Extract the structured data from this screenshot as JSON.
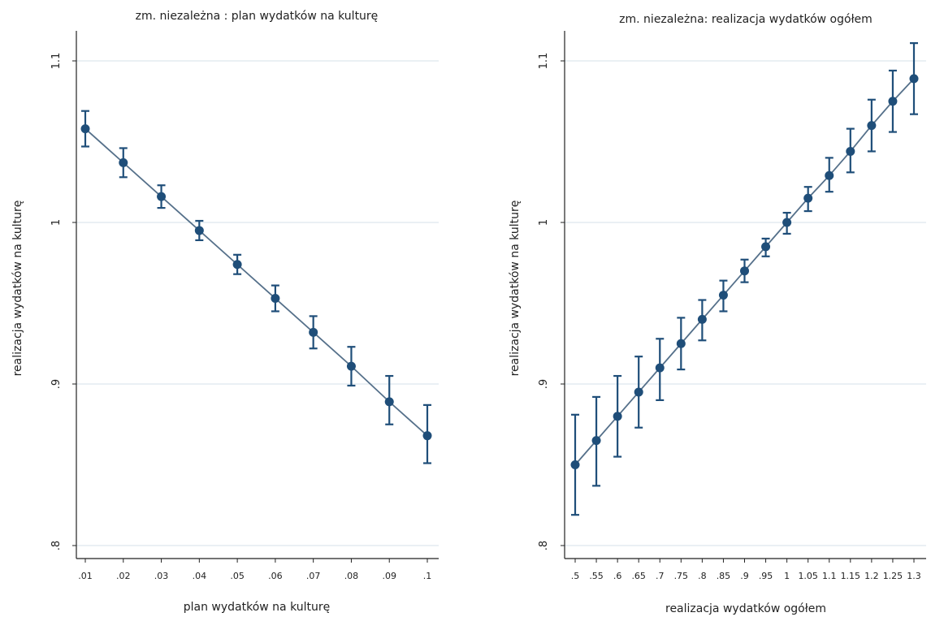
{
  "chart_data": [
    {
      "type": "line",
      "title": "zm. niezależna : plan wydatków na kulturę",
      "xlabel": "plan wydatków na kulturę",
      "ylabel": "realizacja wydatków na kulturę",
      "x_ticks": [
        ".01",
        ".02",
        ".03",
        ".04",
        ".05",
        ".06",
        ".07",
        ".08",
        ".09",
        ".1"
      ],
      "y_ticks": [
        ".8",
        ".9",
        "1",
        "1.1"
      ],
      "ylim": [
        0.8,
        1.1
      ],
      "grid": "horizontal",
      "series": [
        {
          "x": [
            0.01,
            0.02,
            0.03,
            0.04,
            0.05,
            0.06,
            0.07,
            0.08,
            0.09,
            0.1
          ],
          "y": [
            1.058,
            1.037,
            1.016,
            0.995,
            0.974,
            0.953,
            0.932,
            0.911,
            0.889,
            0.868
          ],
          "ci_low": [
            1.047,
            1.028,
            1.009,
            0.989,
            0.968,
            0.945,
            0.922,
            0.899,
            0.875,
            0.851
          ],
          "ci_high": [
            1.069,
            1.046,
            1.023,
            1.001,
            0.98,
            0.961,
            0.942,
            0.923,
            0.905,
            0.887
          ]
        }
      ],
      "colors": {
        "series": "#1f4e79",
        "line": "#55708a",
        "grid": "#dde8ee",
        "axis": "#222222"
      }
    },
    {
      "type": "line",
      "title": "zm. niezależna: realizacja wydatków ogółem",
      "xlabel": "realizacja wydatków ogółem",
      "ylabel": "realizacja wydatków na kulturę",
      "x_ticks": [
        ".5",
        ".55",
        ".6",
        ".65",
        ".7",
        ".75",
        ".8",
        ".85",
        ".9",
        ".95",
        "1",
        "1.05",
        "1.1",
        "1.15",
        "1.2",
        "1.25",
        "1.3"
      ],
      "y_ticks": [
        ".8",
        ".9",
        "1",
        "1.1"
      ],
      "ylim": [
        0.8,
        1.1
      ],
      "grid": "horizontal",
      "series": [
        {
          "x": [
            0.5,
            0.55,
            0.6,
            0.65,
            0.7,
            0.75,
            0.8,
            0.85,
            0.9,
            0.95,
            1.0,
            1.05,
            1.1,
            1.15,
            1.2,
            1.25,
            1.3
          ],
          "y": [
            0.85,
            0.865,
            0.88,
            0.895,
            0.91,
            0.925,
            0.94,
            0.955,
            0.97,
            0.985,
            1.0,
            1.015,
            1.029,
            1.044,
            1.06,
            1.075,
            1.089
          ],
          "ci_low": [
            0.819,
            0.837,
            0.855,
            0.873,
            0.89,
            0.909,
            0.927,
            0.945,
            0.963,
            0.979,
            0.993,
            1.007,
            1.019,
            1.031,
            1.044,
            1.056,
            1.067
          ],
          "ci_high": [
            0.881,
            0.892,
            0.905,
            0.917,
            0.928,
            0.941,
            0.952,
            0.964,
            0.977,
            0.99,
            1.006,
            1.022,
            1.04,
            1.058,
            1.076,
            1.094,
            1.111
          ]
        }
      ],
      "colors": {
        "series": "#1f4e79",
        "line": "#55708a",
        "grid": "#dde8ee",
        "axis": "#222222"
      }
    }
  ]
}
